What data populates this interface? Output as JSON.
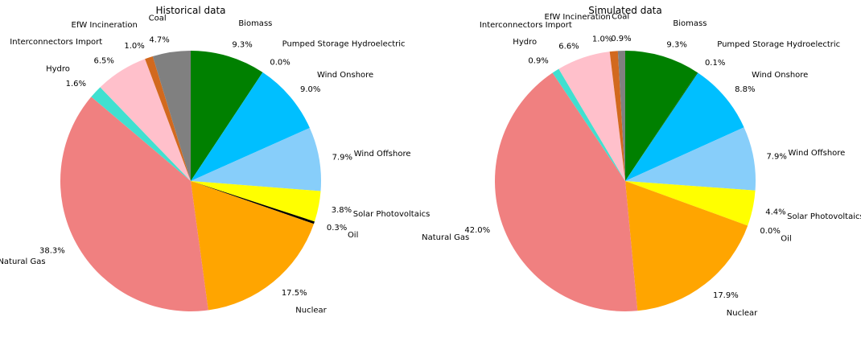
{
  "chart_data": [
    {
      "type": "pie",
      "title": "Historical data",
      "start_angle_deg": 90,
      "direction": "clockwise",
      "slices": [
        {
          "label": "Biomass",
          "value": 9.3,
          "pct_label": "9.3%",
          "color": "#008000"
        },
        {
          "label": "Pumped Storage Hydroelectric",
          "value": 0.0,
          "pct_label": "0.0%",
          "color": "#006400"
        },
        {
          "label": "Wind Onshore",
          "value": 9.0,
          "pct_label": "9.0%",
          "color": "#00bfff"
        },
        {
          "label": "Wind Offshore",
          "value": 7.9,
          "pct_label": "7.9%",
          "color": "#87cefa"
        },
        {
          "label": "Solar Photovoltaics",
          "value": 3.8,
          "pct_label": "3.8%",
          "color": "#ffff00"
        },
        {
          "label": "Oil",
          "value": 0.3,
          "pct_label": "0.3%",
          "color": "#000000"
        },
        {
          "label": "Nuclear",
          "value": 17.5,
          "pct_label": "17.5%",
          "color": "#ffa500"
        },
        {
          "label": "Natural Gas",
          "value": 38.3,
          "pct_label": "38.3%",
          "color": "#f08080"
        },
        {
          "label": "Hydro",
          "value": 1.6,
          "pct_label": "1.6%",
          "color": "#40e0d0"
        },
        {
          "label": "Interconnectors Import",
          "value": 6.5,
          "pct_label": "6.5%",
          "color": "#ffc0cb"
        },
        {
          "label": "EfW Incineration",
          "value": 1.0,
          "pct_label": "1.0%",
          "color": "#d2691e"
        },
        {
          "label": "Coal",
          "value": 4.7,
          "pct_label": "4.7%",
          "color": "#808080"
        }
      ]
    },
    {
      "type": "pie",
      "title": "Simulated data",
      "start_angle_deg": 90,
      "direction": "clockwise",
      "slices": [
        {
          "label": "Biomass",
          "value": 9.3,
          "pct_label": "9.3%",
          "color": "#008000"
        },
        {
          "label": "Pumped Storage Hydroelectric",
          "value": 0.1,
          "pct_label": "0.1%",
          "color": "#006400"
        },
        {
          "label": "Wind Onshore",
          "value": 8.8,
          "pct_label": "8.8%",
          "color": "#00bfff"
        },
        {
          "label": "Wind Offshore",
          "value": 7.9,
          "pct_label": "7.9%",
          "color": "#87cefa"
        },
        {
          "label": "Solar Photovoltaics",
          "value": 4.4,
          "pct_label": "4.4%",
          "color": "#ffff00"
        },
        {
          "label": "Oil",
          "value": 0.0,
          "pct_label": "0.0%",
          "color": "#000000"
        },
        {
          "label": "Nuclear",
          "value": 17.9,
          "pct_label": "17.9%",
          "color": "#ffa500"
        },
        {
          "label": "Natural Gas",
          "value": 42.0,
          "pct_label": "42.0%",
          "color": "#f08080"
        },
        {
          "label": "Hydro",
          "value": 0.9,
          "pct_label": "0.9%",
          "color": "#40e0d0"
        },
        {
          "label": "Interconnectors Import",
          "value": 6.6,
          "pct_label": "6.6%",
          "color": "#ffc0cb"
        },
        {
          "label": "EfW Incineration",
          "value": 1.0,
          "pct_label": "1.0%",
          "color": "#d2691e"
        },
        {
          "label": "Coal",
          "value": 0.9,
          "pct_label": "0.9%",
          "color": "#808080"
        }
      ]
    }
  ]
}
